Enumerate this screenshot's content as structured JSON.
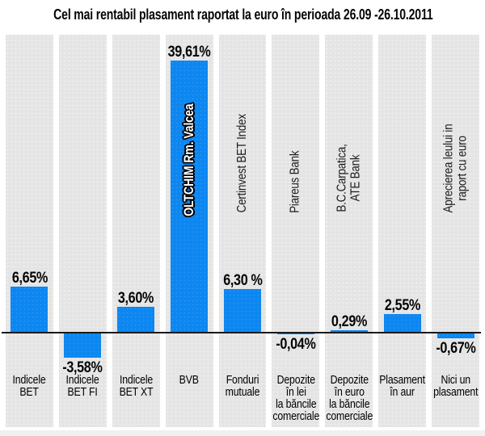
{
  "title": "Cel mai rentabil plasament raportat la euro în perioada 26.09 -26.10.2011",
  "colors": {
    "bar": "#0c86f0",
    "panel": "#e4e4e4",
    "baseline": "#1a1a1a",
    "text": "#000000"
  },
  "chart_data": {
    "type": "bar",
    "title": "Cel mai rentabil plasament raportat la euro în perioada 26.09 -26.10.2011",
    "xlabel": "",
    "ylabel": "",
    "unit": "%",
    "baseline_value": 0,
    "ylim": [
      -4,
      41
    ],
    "grid": false,
    "legend": false,
    "bar_color": "#0c86f0",
    "categories": [
      "Indicele BET",
      "Indicele BET FI",
      "Indicele BET XT",
      "BVB",
      "Fonduri mutuale",
      "Depozite în lei la băncile comerciale",
      "Depozite în euro la băncile comerciale",
      "Plasament în aur",
      "Nici un plasament"
    ],
    "category_labels": [
      "Indicele\nBET",
      "Indicele\nBET FI",
      "Indicele\nBET XT",
      "BVB",
      "Fonduri\nmutuale",
      "Depozite\nîn lei\nla băncile\ncomerciale",
      "Depozite\nîn euro\nla băncile\ncomerciale",
      "Plasament\nîn aur",
      "Nici un\nplasament"
    ],
    "values": [
      6.65,
      -3.58,
      3.6,
      39.61,
      6.3,
      -0.04,
      0.29,
      2.55,
      -0.67
    ],
    "value_labels": [
      "6,65%",
      "-3,58%",
      "3,60%",
      "39,61%",
      "6,30 %",
      "-0,04%",
      "0,29%",
      "2,55%",
      "-0,67%"
    ],
    "annotations": [
      null,
      null,
      null,
      {
        "text": "OLTCHIM Rm. Valcea",
        "placement": "inside-bar"
      },
      {
        "text": "Certinvest BET Index",
        "placement": "column"
      },
      {
        "text": "Piareus Bank",
        "placement": "column"
      },
      {
        "text": "B.C.Carpatica,\nATE Bank",
        "placement": "column"
      },
      null,
      {
        "text": "Aprecierea leului in\nraport cu euro",
        "placement": "column"
      }
    ]
  }
}
